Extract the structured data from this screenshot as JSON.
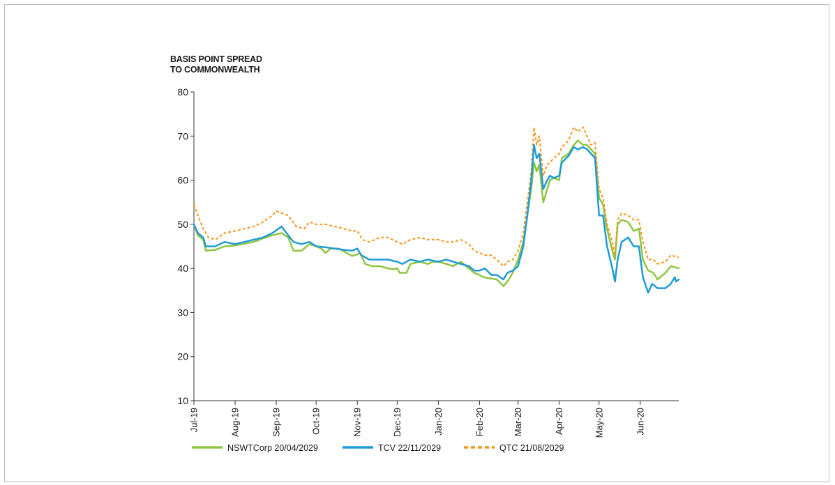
{
  "chart_data": {
    "type": "line",
    "ylabel_lines": [
      "BASIS POINT SPREAD",
      "TO COMMONWEALTH"
    ],
    "xlabel": "",
    "ylim": [
      10,
      80
    ],
    "yticks": [
      10,
      20,
      30,
      40,
      50,
      60,
      70,
      80
    ],
    "xlim": [
      "2019-07-01",
      "2020-06-30"
    ],
    "xticks": [
      {
        "date": "2019-07-01",
        "label": "Jul-19"
      },
      {
        "date": "2019-08-01",
        "label": "Aug-19"
      },
      {
        "date": "2019-09-01",
        "label": "Sep-19"
      },
      {
        "date": "2019-10-01",
        "label": "Oct-19"
      },
      {
        "date": "2019-11-01",
        "label": "Nov-19"
      },
      {
        "date": "2019-12-01",
        "label": "Dec-19"
      },
      {
        "date": "2020-01-01",
        "label": "Jan-20"
      },
      {
        "date": "2020-02-01",
        "label": "Feb-20"
      },
      {
        "date": "2020-03-01",
        "label": "Mar-20"
      },
      {
        "date": "2020-04-01",
        "label": "Apr-20"
      },
      {
        "date": "2020-05-01",
        "label": "May-20"
      },
      {
        "date": "2020-06-01",
        "label": "Jun-20"
      }
    ],
    "grid": false,
    "legend_position": "bottom-left",
    "series": [
      {
        "name": "NSWTCorp 20/04/2029",
        "color": "#8dc63f",
        "style": "solid",
        "points": [
          [
            "2019-07-01",
            50.0
          ],
          [
            "2019-07-04",
            47.5
          ],
          [
            "2019-07-08",
            46.5
          ],
          [
            "2019-07-10",
            44.0
          ],
          [
            "2019-07-17",
            44.2
          ],
          [
            "2019-07-24",
            45.0
          ],
          [
            "2019-08-01",
            45.2
          ],
          [
            "2019-08-08",
            45.6
          ],
          [
            "2019-08-15",
            46.0
          ],
          [
            "2019-08-22",
            46.8
          ],
          [
            "2019-08-29",
            47.5
          ],
          [
            "2019-09-05",
            48.0
          ],
          [
            "2019-09-10",
            47.0
          ],
          [
            "2019-09-14",
            44.0
          ],
          [
            "2019-09-20",
            44.0
          ],
          [
            "2019-09-26",
            45.5
          ],
          [
            "2019-10-01",
            45.0
          ],
          [
            "2019-10-05",
            44.5
          ],
          [
            "2019-10-08",
            43.5
          ],
          [
            "2019-10-12",
            44.5
          ],
          [
            "2019-10-18",
            44.5
          ],
          [
            "2019-10-24",
            43.5
          ],
          [
            "2019-10-28",
            42.8
          ],
          [
            "2019-11-01",
            43.2
          ],
          [
            "2019-11-03",
            43.5
          ],
          [
            "2019-11-07",
            41.0
          ],
          [
            "2019-11-12",
            40.5
          ],
          [
            "2019-11-18",
            40.5
          ],
          [
            "2019-11-24",
            40.0
          ],
          [
            "2019-11-28",
            39.8
          ],
          [
            "2019-12-01",
            40.0
          ],
          [
            "2019-12-03",
            39.0
          ],
          [
            "2019-12-08",
            39.0
          ],
          [
            "2019-12-11",
            41.0
          ],
          [
            "2019-12-18",
            41.5
          ],
          [
            "2019-12-24",
            41.0
          ],
          [
            "2019-12-28",
            41.5
          ],
          [
            "2020-01-01",
            41.5
          ],
          [
            "2020-01-07",
            41.0
          ],
          [
            "2020-01-12",
            40.5
          ],
          [
            "2020-01-18",
            41.5
          ],
          [
            "2020-01-24",
            40.0
          ],
          [
            "2020-01-28",
            39.0
          ],
          [
            "2020-02-01",
            38.5
          ],
          [
            "2020-02-04",
            38.0
          ],
          [
            "2020-02-08",
            37.8
          ],
          [
            "2020-02-14",
            37.5
          ],
          [
            "2020-02-19",
            36.0
          ],
          [
            "2020-02-22",
            37.0
          ],
          [
            "2020-02-26",
            39.0
          ],
          [
            "2020-03-01",
            42.0
          ],
          [
            "2020-03-05",
            46.0
          ],
          [
            "2020-03-08",
            52.0
          ],
          [
            "2020-03-11",
            58.0
          ],
          [
            "2020-03-13",
            64.0
          ],
          [
            "2020-03-15",
            62.0
          ],
          [
            "2020-03-17",
            63.5
          ],
          [
            "2020-03-20",
            55.0
          ],
          [
            "2020-03-23",
            58.0
          ],
          [
            "2020-03-25",
            60.0
          ],
          [
            "2020-03-28",
            60.5
          ],
          [
            "2020-04-01",
            60.0
          ],
          [
            "2020-04-03",
            65.0
          ],
          [
            "2020-04-08",
            66.0
          ],
          [
            "2020-04-12",
            68.0
          ],
          [
            "2020-04-15",
            69.0
          ],
          [
            "2020-04-19",
            68.0
          ],
          [
            "2020-04-22",
            68.0
          ],
          [
            "2020-04-25",
            67.0
          ],
          [
            "2020-04-28",
            66.0
          ],
          [
            "2020-05-01",
            56.0
          ],
          [
            "2020-05-04",
            54.5
          ],
          [
            "2020-05-07",
            49.0
          ],
          [
            "2020-05-11",
            44.0
          ],
          [
            "2020-05-13",
            42.0
          ],
          [
            "2020-05-15",
            50.0
          ],
          [
            "2020-05-18",
            51.0
          ],
          [
            "2020-05-23",
            50.5
          ],
          [
            "2020-05-27",
            48.5
          ],
          [
            "2020-05-31",
            49.0
          ],
          [
            "2020-06-03",
            42.0
          ],
          [
            "2020-06-07",
            39.5
          ],
          [
            "2020-06-11",
            39.0
          ],
          [
            "2020-06-14",
            37.5
          ],
          [
            "2020-06-20",
            39.0
          ],
          [
            "2020-06-24",
            40.5
          ],
          [
            "2020-06-30",
            40.0
          ]
        ]
      },
      {
        "name": "TCV 22/11/2029",
        "color": "#1f9ad6",
        "style": "solid",
        "points": [
          [
            "2019-07-01",
            50.0
          ],
          [
            "2019-07-04",
            48.0
          ],
          [
            "2019-07-08",
            47.0
          ],
          [
            "2019-07-10",
            45.0
          ],
          [
            "2019-07-17",
            45.0
          ],
          [
            "2019-07-24",
            46.0
          ],
          [
            "2019-08-01",
            45.5
          ],
          [
            "2019-08-08",
            46.0
          ],
          [
            "2019-08-15",
            46.5
          ],
          [
            "2019-08-22",
            47.0
          ],
          [
            "2019-08-29",
            48.0
          ],
          [
            "2019-09-05",
            49.5
          ],
          [
            "2019-09-10",
            47.5
          ],
          [
            "2019-09-14",
            46.0
          ],
          [
            "2019-09-20",
            45.5
          ],
          [
            "2019-09-26",
            46.0
          ],
          [
            "2019-10-01",
            45.0
          ],
          [
            "2019-10-08",
            44.8
          ],
          [
            "2019-10-15",
            44.5
          ],
          [
            "2019-10-22",
            44.2
          ],
          [
            "2019-10-28",
            44.0
          ],
          [
            "2019-11-01",
            44.5
          ],
          [
            "2019-11-04",
            43.0
          ],
          [
            "2019-11-10",
            42.0
          ],
          [
            "2019-11-18",
            42.0
          ],
          [
            "2019-11-24",
            42.0
          ],
          [
            "2019-12-01",
            41.5
          ],
          [
            "2019-12-05",
            41.0
          ],
          [
            "2019-12-11",
            42.0
          ],
          [
            "2019-12-18",
            41.5
          ],
          [
            "2019-12-24",
            42.0
          ],
          [
            "2020-01-01",
            41.5
          ],
          [
            "2020-01-07",
            42.0
          ],
          [
            "2020-01-12",
            41.5
          ],
          [
            "2020-01-18",
            41.0
          ],
          [
            "2020-01-24",
            40.5
          ],
          [
            "2020-01-28",
            39.5
          ],
          [
            "2020-02-01",
            39.5
          ],
          [
            "2020-02-05",
            40.0
          ],
          [
            "2020-02-10",
            38.5
          ],
          [
            "2020-02-14",
            38.5
          ],
          [
            "2020-02-19",
            37.5
          ],
          [
            "2020-02-22",
            39.0
          ],
          [
            "2020-02-26",
            39.5
          ],
          [
            "2020-03-01",
            40.5
          ],
          [
            "2020-03-05",
            45.0
          ],
          [
            "2020-03-08",
            52.0
          ],
          [
            "2020-03-11",
            60.0
          ],
          [
            "2020-03-13",
            68.0
          ],
          [
            "2020-03-15",
            65.0
          ],
          [
            "2020-03-17",
            66.0
          ],
          [
            "2020-03-20",
            58.0
          ],
          [
            "2020-03-23",
            60.0
          ],
          [
            "2020-03-25",
            61.0
          ],
          [
            "2020-03-28",
            60.5
          ],
          [
            "2020-04-01",
            61.0
          ],
          [
            "2020-04-03",
            64.0
          ],
          [
            "2020-04-08",
            65.5
          ],
          [
            "2020-04-12",
            67.5
          ],
          [
            "2020-04-15",
            67.0
          ],
          [
            "2020-04-19",
            67.5
          ],
          [
            "2020-04-22",
            67.0
          ],
          [
            "2020-04-25",
            66.0
          ],
          [
            "2020-04-28",
            65.0
          ],
          [
            "2020-05-01",
            52.0
          ],
          [
            "2020-05-04",
            52.0
          ],
          [
            "2020-05-07",
            45.0
          ],
          [
            "2020-05-11",
            40.0
          ],
          [
            "2020-05-13",
            37.0
          ],
          [
            "2020-05-15",
            42.0
          ],
          [
            "2020-05-18",
            46.0
          ],
          [
            "2020-05-23",
            47.0
          ],
          [
            "2020-05-27",
            45.0
          ],
          [
            "2020-05-31",
            45.0
          ],
          [
            "2020-06-03",
            38.0
          ],
          [
            "2020-06-07",
            34.5
          ],
          [
            "2020-06-10",
            36.5
          ],
          [
            "2020-06-14",
            35.5
          ],
          [
            "2020-06-20",
            35.5
          ],
          [
            "2020-06-24",
            36.5
          ],
          [
            "2020-06-27",
            38.0
          ],
          [
            "2020-06-28",
            37.0
          ],
          [
            "2020-06-30",
            37.5
          ]
        ]
      },
      {
        "name": "QTC 21/08/2029",
        "color": "#f7941d",
        "style": "dashed",
        "points": [
          [
            "2019-07-01",
            54.5
          ],
          [
            "2019-07-04",
            52.0
          ],
          [
            "2019-07-08",
            49.0
          ],
          [
            "2019-07-12",
            47.0
          ],
          [
            "2019-07-17",
            46.5
          ],
          [
            "2019-07-24",
            48.0
          ],
          [
            "2019-08-01",
            48.5
          ],
          [
            "2019-08-08",
            49.0
          ],
          [
            "2019-08-15",
            49.5
          ],
          [
            "2019-08-22",
            50.5
          ],
          [
            "2019-08-29",
            52.0
          ],
          [
            "2019-09-01",
            53.0
          ],
          [
            "2019-09-05",
            52.5
          ],
          [
            "2019-09-10",
            52.0
          ],
          [
            "2019-09-16",
            49.5
          ],
          [
            "2019-09-22",
            49.0
          ],
          [
            "2019-09-26",
            50.5
          ],
          [
            "2019-10-01",
            50.0
          ],
          [
            "2019-10-08",
            50.0
          ],
          [
            "2019-10-15",
            49.5
          ],
          [
            "2019-10-22",
            49.0
          ],
          [
            "2019-10-28",
            48.5
          ],
          [
            "2019-11-01",
            48.5
          ],
          [
            "2019-11-05",
            46.5
          ],
          [
            "2019-11-10",
            46.0
          ],
          [
            "2019-11-18",
            47.0
          ],
          [
            "2019-11-24",
            47.0
          ],
          [
            "2019-12-01",
            46.0
          ],
          [
            "2019-12-05",
            45.5
          ],
          [
            "2019-12-11",
            46.5
          ],
          [
            "2019-12-18",
            47.0
          ],
          [
            "2019-12-24",
            46.5
          ],
          [
            "2020-01-01",
            46.5
          ],
          [
            "2020-01-07",
            46.0
          ],
          [
            "2020-01-12",
            46.0
          ],
          [
            "2020-01-18",
            46.5
          ],
          [
            "2020-01-24",
            45.5
          ],
          [
            "2020-01-28",
            44.0
          ],
          [
            "2020-02-01",
            43.5
          ],
          [
            "2020-02-05",
            43.0
          ],
          [
            "2020-02-10",
            43.0
          ],
          [
            "2020-02-14",
            42.0
          ],
          [
            "2020-02-19",
            40.5
          ],
          [
            "2020-02-22",
            41.5
          ],
          [
            "2020-02-26",
            42.0
          ],
          [
            "2020-03-01",
            44.0
          ],
          [
            "2020-03-05",
            48.0
          ],
          [
            "2020-03-08",
            55.0
          ],
          [
            "2020-03-11",
            62.0
          ],
          [
            "2020-03-13",
            72.0
          ],
          [
            "2020-03-15",
            68.0
          ],
          [
            "2020-03-17",
            70.0
          ],
          [
            "2020-03-20",
            61.0
          ],
          [
            "2020-03-23",
            63.5
          ],
          [
            "2020-03-25",
            64.0
          ],
          [
            "2020-03-28",
            65.0
          ],
          [
            "2020-04-01",
            66.0
          ],
          [
            "2020-04-03",
            67.5
          ],
          [
            "2020-04-08",
            69.0
          ],
          [
            "2020-04-12",
            72.0
          ],
          [
            "2020-04-15",
            71.0
          ],
          [
            "2020-04-19",
            72.0
          ],
          [
            "2020-04-22",
            70.0
          ],
          [
            "2020-04-25",
            68.0
          ],
          [
            "2020-04-28",
            68.5
          ],
          [
            "2020-05-01",
            58.0
          ],
          [
            "2020-05-04",
            56.0
          ],
          [
            "2020-05-07",
            50.0
          ],
          [
            "2020-05-11",
            46.0
          ],
          [
            "2020-05-13",
            43.0
          ],
          [
            "2020-05-15",
            51.0
          ],
          [
            "2020-05-18",
            52.5
          ],
          [
            "2020-05-23",
            52.0
          ],
          [
            "2020-05-27",
            51.0
          ],
          [
            "2020-05-31",
            51.0
          ],
          [
            "2020-06-03",
            46.0
          ],
          [
            "2020-06-07",
            42.0
          ],
          [
            "2020-06-11",
            42.0
          ],
          [
            "2020-06-14",
            41.0
          ],
          [
            "2020-06-20",
            41.5
          ],
          [
            "2020-06-24",
            43.0
          ],
          [
            "2020-06-30",
            42.5
          ]
        ]
      }
    ]
  }
}
